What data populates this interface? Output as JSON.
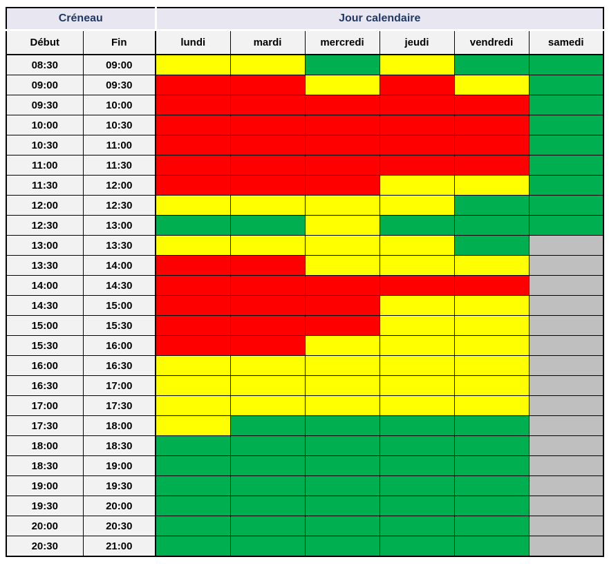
{
  "chart_data": {
    "type": "heatmap",
    "header_groups": [
      {
        "label": "Créneau",
        "span": 2
      },
      {
        "label": "Jour calendaire",
        "span": 6
      }
    ],
    "time_columns": [
      "Début",
      "Fin"
    ],
    "x_labels": [
      "lundi",
      "mardi",
      "mercredi",
      "jeudi",
      "vendredi",
      "samedi"
    ],
    "y_slots": [
      {
        "start": "08:30",
        "end": "09:00"
      },
      {
        "start": "09:00",
        "end": "09:30"
      },
      {
        "start": "09:30",
        "end": "10:00"
      },
      {
        "start": "10:00",
        "end": "10:30"
      },
      {
        "start": "10:30",
        "end": "11:00"
      },
      {
        "start": "11:00",
        "end": "11:30"
      },
      {
        "start": "11:30",
        "end": "12:00"
      },
      {
        "start": "12:00",
        "end": "12:30"
      },
      {
        "start": "12:30",
        "end": "13:00"
      },
      {
        "start": "13:00",
        "end": "13:30"
      },
      {
        "start": "13:30",
        "end": "14:00"
      },
      {
        "start": "14:00",
        "end": "14:30"
      },
      {
        "start": "14:30",
        "end": "15:00"
      },
      {
        "start": "15:00",
        "end": "15:30"
      },
      {
        "start": "15:30",
        "end": "16:00"
      },
      {
        "start": "16:00",
        "end": "16:30"
      },
      {
        "start": "16:30",
        "end": "17:00"
      },
      {
        "start": "17:00",
        "end": "17:30"
      },
      {
        "start": "17:30",
        "end": "18:00"
      },
      {
        "start": "18:00",
        "end": "18:30"
      },
      {
        "start": "18:30",
        "end": "19:00"
      },
      {
        "start": "19:00",
        "end": "19:30"
      },
      {
        "start": "19:30",
        "end": "20:00"
      },
      {
        "start": "20:00",
        "end": "20:30"
      },
      {
        "start": "20:30",
        "end": "21:00"
      }
    ],
    "values": [
      [
        "yellow",
        "yellow",
        "green",
        "yellow",
        "green",
        "green"
      ],
      [
        "red",
        "red",
        "yellow",
        "red",
        "yellow",
        "green"
      ],
      [
        "red",
        "red",
        "red",
        "red",
        "red",
        "green"
      ],
      [
        "red",
        "red",
        "red",
        "red",
        "red",
        "green"
      ],
      [
        "red",
        "red",
        "red",
        "red",
        "red",
        "green"
      ],
      [
        "red",
        "red",
        "red",
        "red",
        "red",
        "green"
      ],
      [
        "red",
        "red",
        "red",
        "yellow",
        "yellow",
        "green"
      ],
      [
        "yellow",
        "yellow",
        "yellow",
        "yellow",
        "green",
        "green"
      ],
      [
        "green",
        "green",
        "yellow",
        "green",
        "green",
        "green"
      ],
      [
        "yellow",
        "yellow",
        "yellow",
        "yellow",
        "green",
        "gray"
      ],
      [
        "red",
        "red",
        "yellow",
        "yellow",
        "yellow",
        "gray"
      ],
      [
        "red",
        "red",
        "red",
        "red",
        "red",
        "gray"
      ],
      [
        "red",
        "red",
        "red",
        "yellow",
        "yellow",
        "gray"
      ],
      [
        "red",
        "red",
        "red",
        "yellow",
        "yellow",
        "gray"
      ],
      [
        "red",
        "red",
        "yellow",
        "yellow",
        "yellow",
        "gray"
      ],
      [
        "yellow",
        "yellow",
        "yellow",
        "yellow",
        "yellow",
        "gray"
      ],
      [
        "yellow",
        "yellow",
        "yellow",
        "yellow",
        "yellow",
        "gray"
      ],
      [
        "yellow",
        "yellow",
        "yellow",
        "yellow",
        "yellow",
        "gray"
      ],
      [
        "yellow",
        "green",
        "green",
        "green",
        "green",
        "gray"
      ],
      [
        "green",
        "green",
        "green",
        "green",
        "green",
        "gray"
      ],
      [
        "green",
        "green",
        "green",
        "green",
        "green",
        "gray"
      ],
      [
        "green",
        "green",
        "green",
        "green",
        "green",
        "gray"
      ],
      [
        "green",
        "green",
        "green",
        "green",
        "green",
        "gray"
      ],
      [
        "green",
        "green",
        "green",
        "green",
        "green",
        "gray"
      ],
      [
        "green",
        "green",
        "green",
        "green",
        "green",
        "gray"
      ]
    ],
    "color_map": {
      "red": "#FF0000",
      "yellow": "#FFFF00",
      "green": "#00B050",
      "gray": "#BFBFBF"
    },
    "legend_position": "none",
    "grid": true
  },
  "style": {
    "header_bg": "#E8E7F1",
    "header_text": "#203864",
    "neutral_cell_bg": "#F2F2F2",
    "border_color": "#000000"
  }
}
